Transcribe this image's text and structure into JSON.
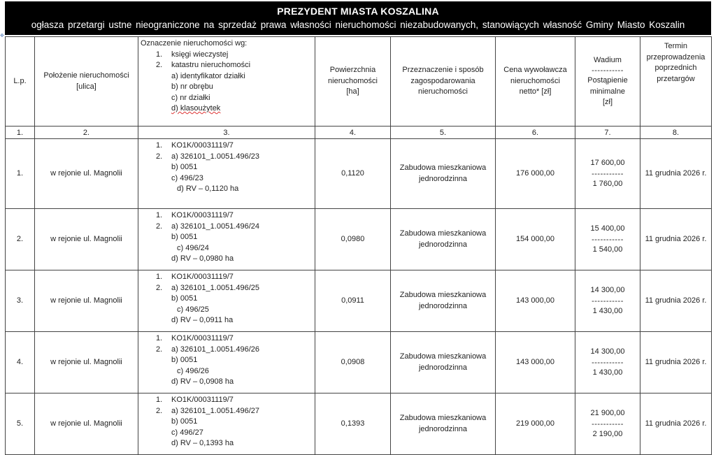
{
  "header": {
    "title": "PREZYDENT MIASTA KOSZALINA",
    "subtitle": "ogłasza przetargi ustne nieograniczone  na sprzedaż prawa własności nieruchomości niezabudowanych, stanowiących własność Gminy Miasto Koszalin"
  },
  "columns": {
    "c1": "L.p.",
    "c2": [
      "Położenie nieruchomości",
      "[ulica]"
    ],
    "c3": {
      "intro": "Oznaczenie nieruchomości wg:",
      "n1": "1.",
      "l1": "księgi wieczystej",
      "n2": "2.",
      "l2": "katastru nieruchomości",
      "a": "a) identyfikator działki",
      "b": "b) nr obrębu",
      "c": "c) nr działki",
      "d": "d) klasoużytek"
    },
    "c4": [
      "Powierzchnia",
      "nieruchomości",
      "[ha]"
    ],
    "c5": [
      "Przeznaczenie i sposób",
      "zagospodarowania",
      "nieruchomości"
    ],
    "c6": [
      "Cena wywoławcza",
      "nieruchomości",
      "netto* [zł]"
    ],
    "c7": [
      "Wadium",
      "-----------",
      "Postąpienie",
      "minimalne",
      "[zł]"
    ],
    "c8": [
      "Termin",
      "przeprowadzenia",
      "poprzednich",
      "przetargów"
    ]
  },
  "column_numbers": [
    "1.",
    "2.",
    "3.",
    "4.",
    "5.",
    "6.",
    "7.",
    "8."
  ],
  "rows": [
    {
      "lp": "1.",
      "street": "w rejonie ul. Magnolii",
      "kw": "KO1K/00031119/7",
      "a": "a) 326101_1.0051.496/23",
      "b": "b) 0051",
      "c": "c) 496/23",
      "d": "d) RV – 0,1120 ha",
      "area": "0,1120",
      "purpose": [
        "Zabudowa mieszkaniowa",
        "jednorodzinna"
      ],
      "price": "176 000,00",
      "wadium": "17 600,00",
      "sep": "-----------",
      "min_bid": "1 760,00",
      "term": "11 grudnia 2026 r."
    },
    {
      "lp": "2.",
      "street": "w rejonie ul. Magnolii",
      "kw": "KO1K/00031119/7",
      "a": "a) 326101_1.0051.496/24",
      "b": "b) 0051",
      "c": "c) 496/24",
      "d": "d) RV – 0,0980 ha",
      "area": "0,0980",
      "purpose": [
        "Zabudowa mieszkaniowa",
        "jednorodzinna"
      ],
      "price": "154 000,00",
      "wadium": "15 400,00",
      "sep": "-----------",
      "min_bid": "1 540,00",
      "term": "11 grudnia 2026 r."
    },
    {
      "lp": "3.",
      "street": "w rejonie ul. Magnolii",
      "kw": "KO1K/00031119/7",
      "a": "a) 326101_1.0051.496/25",
      "b": "b) 0051",
      "c": "c) 496/25",
      "d": "d) RV – 0,0911 ha",
      "area": "0,0911",
      "purpose": [
        "Zabudowa mieszkaniowa",
        "jednorodzinna"
      ],
      "price": "143 000,00",
      "wadium": "14 300,00",
      "sep": "-----------",
      "min_bid": "1 430,00",
      "term": "11 grudnia 2026 r."
    },
    {
      "lp": "4.",
      "street": "w rejonie ul. Magnolii",
      "kw": "KO1K/00031119/7",
      "a": "a) 326101_1.0051.496/26",
      "b": "b) 0051",
      "c": "c) 496/26",
      "d": "d) RV – 0,0908 ha",
      "area": "0,0908",
      "purpose": [
        "Zabudowa mieszkaniowa",
        "jednorodzinna"
      ],
      "price": "143 000,00",
      "wadium": "14 300,00",
      "sep": "-----------",
      "min_bid": "1 430,00",
      "term": "11 grudnia 2026 r."
    },
    {
      "lp": "5.",
      "street": "w rejonie ul. Magnolii",
      "kw": "KO1K/00031119/7",
      "a": "a) 326101_1.0051.496/27",
      "b": "b) 0051",
      "c": "c) 496/27",
      "d": "d) RV – 0,1393 ha",
      "area": "0,1393",
      "purpose": [
        "Zabudowa mieszkaniowa",
        "jednorodzinna"
      ],
      "price": "219 000,00",
      "wadium": "21 900,00",
      "sep": "-----------",
      "min_bid": "2 190,00",
      "term": "11 grudnia 2026 r."
    }
  ]
}
